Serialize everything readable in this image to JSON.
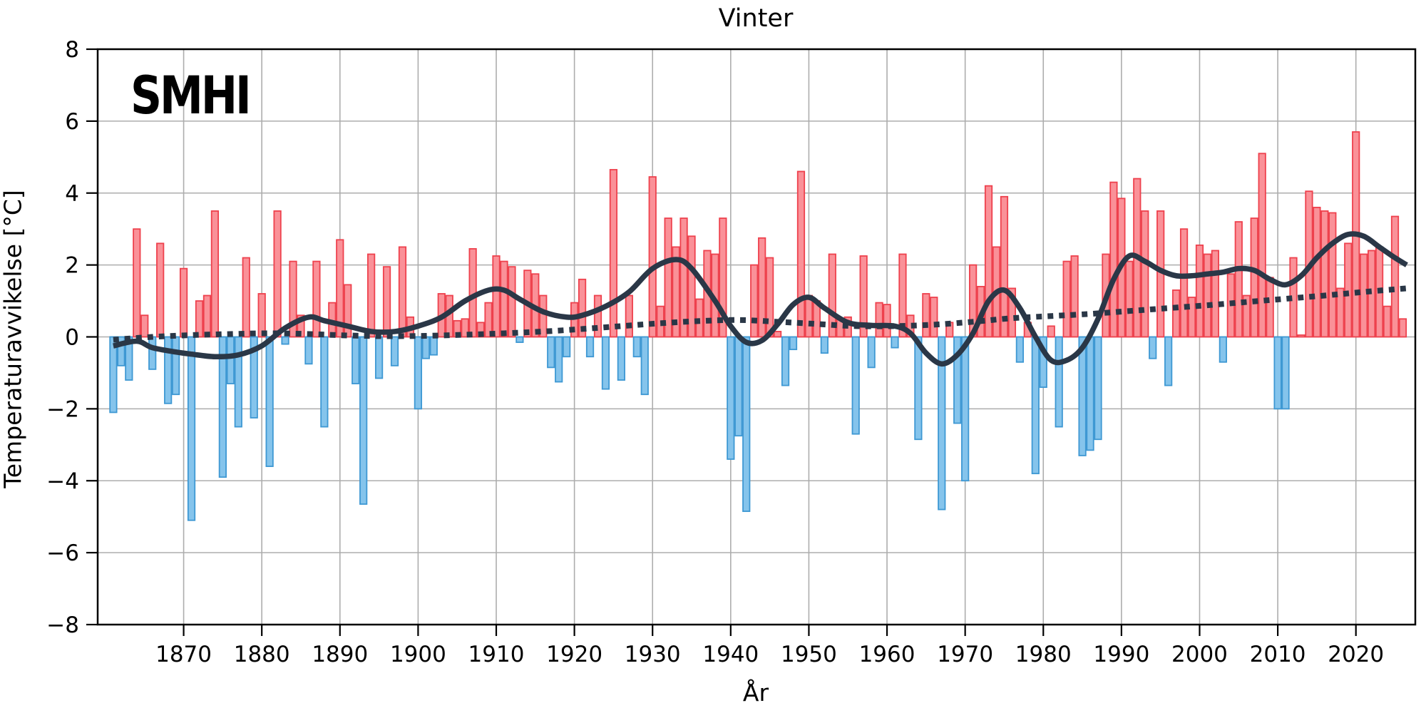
{
  "title": "Vinter",
  "logo": {
    "text": "SMHI"
  },
  "axes": {
    "y_label": "Temperaturavvikelse [°C]",
    "x_label": "År",
    "y_ticks": [
      8,
      6,
      4,
      2,
      0,
      -2,
      -4,
      -6,
      -8
    ],
    "x_ticks": [
      1870,
      1880,
      1890,
      1900,
      1910,
      1920,
      1930,
      1940,
      1950,
      1960,
      1970,
      1980,
      1990,
      2000,
      2010,
      2020
    ]
  },
  "chart_data": {
    "type": "bar",
    "title": "Vinter",
    "xlabel": "År",
    "ylabel": "Temperaturavvikelse [°C]",
    "ylim": [
      -8,
      8
    ],
    "xlim": [
      1859.0,
      2027.6
    ],
    "grid": true,
    "start_year": 1861,
    "values": [
      -2.1,
      -0.8,
      -1.2,
      3.0,
      0.6,
      -0.9,
      2.6,
      -1.85,
      -1.6,
      1.9,
      -5.1,
      1.0,
      1.15,
      3.5,
      -3.9,
      -1.3,
      -2.5,
      2.2,
      -2.25,
      1.2,
      -3.6,
      3.5,
      -0.2,
      2.1,
      0.6,
      -0.75,
      2.1,
      -2.5,
      0.95,
      2.7,
      1.45,
      -1.3,
      -4.65,
      2.3,
      -1.15,
      1.95,
      -0.8,
      2.5,
      0.55,
      -2.0,
      -0.6,
      -0.5,
      1.2,
      1.15,
      0.45,
      0.5,
      2.45,
      0.4,
      0.95,
      2.25,
      2.1,
      1.95,
      -0.15,
      1.85,
      1.75,
      1.15,
      -0.85,
      -1.25,
      -0.55,
      0.95,
      1.6,
      -0.55,
      1.15,
      -1.45,
      4.65,
      -1.2,
      1.15,
      -0.55,
      -1.6,
      4.45,
      0.85,
      3.3,
      2.5,
      3.3,
      2.8,
      1.05,
      2.4,
      2.3,
      3.3,
      -3.4,
      -2.75,
      -4.85,
      2.0,
      2.75,
      2.2,
      0.15,
      -1.35,
      -0.35,
      4.6,
      1.15,
      1.0,
      -0.45,
      2.3,
      0.5,
      0.55,
      -2.7,
      2.25,
      -0.85,
      0.95,
      0.9,
      -0.3,
      2.3,
      0.6,
      -2.85,
      1.2,
      1.1,
      -4.8,
      0.4,
      -2.4,
      -4.0,
      2.0,
      1.4,
      4.2,
      2.5,
      3.9,
      1.35,
      -0.7,
      0.4,
      -3.8,
      -1.4,
      0.3,
      -2.5,
      2.1,
      2.25,
      -3.3,
      -3.15,
      -2.85,
      2.3,
      4.3,
      3.85,
      2.1,
      4.4,
      3.5,
      -0.6,
      3.5,
      -1.35,
      1.3,
      3.0,
      1.1,
      2.55,
      2.3,
      2.4,
      -0.7,
      1.75,
      3.2,
      1.15,
      3.3,
      5.1,
      1.65,
      -2.0,
      -2.0,
      2.2,
      0.05,
      4.05,
      3.6,
      3.5,
      3.45,
      1.35,
      2.6,
      5.7,
      2.3,
      2.4,
      2.5,
      0.85,
      3.35,
      0.5
    ],
    "series": [
      {
        "name": "smoothed-curve",
        "type": "line",
        "points": [
          [
            1861,
            -0.25
          ],
          [
            1864,
            -0.12
          ],
          [
            1866,
            -0.3
          ],
          [
            1869,
            -0.42
          ],
          [
            1871,
            -0.48
          ],
          [
            1874,
            -0.55
          ],
          [
            1877,
            -0.5
          ],
          [
            1880,
            -0.25
          ],
          [
            1883,
            0.25
          ],
          [
            1886,
            0.55
          ],
          [
            1888,
            0.45
          ],
          [
            1891,
            0.3
          ],
          [
            1894,
            0.15
          ],
          [
            1897,
            0.15
          ],
          [
            1900,
            0.3
          ],
          [
            1903,
            0.55
          ],
          [
            1906,
            1.0
          ],
          [
            1909,
            1.3
          ],
          [
            1911,
            1.3
          ],
          [
            1913,
            1.05
          ],
          [
            1916,
            0.7
          ],
          [
            1919,
            0.55
          ],
          [
            1921,
            0.6
          ],
          [
            1924,
            0.85
          ],
          [
            1927,
            1.25
          ],
          [
            1930,
            1.9
          ],
          [
            1933,
            2.15
          ],
          [
            1935,
            1.9
          ],
          [
            1938,
            1.0
          ],
          [
            1940,
            0.3
          ],
          [
            1942,
            -0.15
          ],
          [
            1944,
            -0.1
          ],
          [
            1946,
            0.35
          ],
          [
            1948,
            0.9
          ],
          [
            1950,
            1.1
          ],
          [
            1952,
            0.8
          ],
          [
            1955,
            0.4
          ],
          [
            1958,
            0.32
          ],
          [
            1961,
            0.3
          ],
          [
            1963,
            0.1
          ],
          [
            1965,
            -0.45
          ],
          [
            1967,
            -0.75
          ],
          [
            1969,
            -0.5
          ],
          [
            1971,
            0.1
          ],
          [
            1973,
            1.0
          ],
          [
            1975,
            1.3
          ],
          [
            1977,
            0.8
          ],
          [
            1979,
            0.0
          ],
          [
            1981,
            -0.65
          ],
          [
            1983,
            -0.65
          ],
          [
            1985,
            -0.3
          ],
          [
            1987,
            0.5
          ],
          [
            1989,
            1.6
          ],
          [
            1991,
            2.25
          ],
          [
            1993,
            2.1
          ],
          [
            1995,
            1.85
          ],
          [
            1997,
            1.7
          ],
          [
            1999,
            1.7
          ],
          [
            2001,
            1.75
          ],
          [
            2003,
            1.8
          ],
          [
            2005,
            1.9
          ],
          [
            2007,
            1.85
          ],
          [
            2009,
            1.6
          ],
          [
            2011,
            1.45
          ],
          [
            2013,
            1.7
          ],
          [
            2015,
            2.2
          ],
          [
            2017,
            2.6
          ],
          [
            2019,
            2.85
          ],
          [
            2021,
            2.8
          ],
          [
            2023,
            2.5
          ],
          [
            2025,
            2.2
          ],
          [
            2026.5,
            2.0
          ]
        ]
      },
      {
        "name": "trend-dotted",
        "type": "dotted",
        "points": [
          [
            1861,
            -0.08
          ],
          [
            1866,
            0.0
          ],
          [
            1871,
            0.05
          ],
          [
            1876,
            0.08
          ],
          [
            1881,
            0.1
          ],
          [
            1886,
            0.08
          ],
          [
            1891,
            0.04
          ],
          [
            1896,
            0.02
          ],
          [
            1901,
            0.03
          ],
          [
            1906,
            0.06
          ],
          [
            1911,
            0.1
          ],
          [
            1916,
            0.15
          ],
          [
            1921,
            0.22
          ],
          [
            1926,
            0.3
          ],
          [
            1931,
            0.38
          ],
          [
            1936,
            0.44
          ],
          [
            1941,
            0.47
          ],
          [
            1946,
            0.42
          ],
          [
            1951,
            0.36
          ],
          [
            1956,
            0.3
          ],
          [
            1961,
            0.3
          ],
          [
            1966,
            0.34
          ],
          [
            1971,
            0.42
          ],
          [
            1976,
            0.52
          ],
          [
            1981,
            0.58
          ],
          [
            1986,
            0.64
          ],
          [
            1991,
            0.72
          ],
          [
            1996,
            0.8
          ],
          [
            2001,
            0.88
          ],
          [
            2006,
            0.97
          ],
          [
            2011,
            1.06
          ],
          [
            2016,
            1.15
          ],
          [
            2021,
            1.25
          ],
          [
            2026.5,
            1.35
          ]
        ]
      }
    ],
    "colors": {
      "positive_fill": "#FA9198",
      "positive_stroke": "#EE414D",
      "negative_fill": "#85C4EC",
      "negative_stroke": "#3E98D3",
      "curve": "#2A3747",
      "grid": "#ADADAD",
      "axis": "#000000"
    }
  }
}
